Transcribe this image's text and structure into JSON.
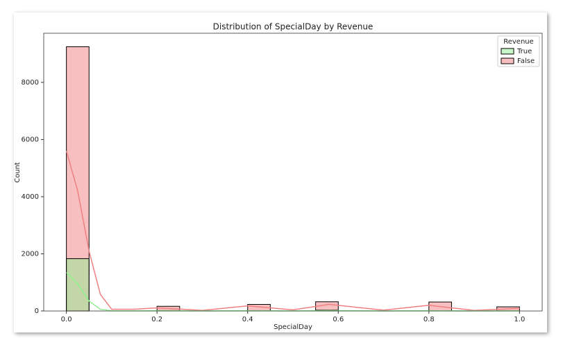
{
  "chart_data": {
    "type": "histogram",
    "title": "Distribution of SpecialDay by Revenue",
    "x_label": "SpecialDay",
    "y_label": "Count",
    "legend_title": "Revenue",
    "legend": "upper right",
    "bins": [
      0,
      0.05,
      0.1,
      0.15,
      0.2,
      0.25,
      0.3,
      0.35,
      0.4,
      0.45,
      0.5,
      0.55,
      0.6,
      0.65,
      0.7,
      0.75,
      0.8,
      0.85,
      0.9,
      0.95,
      1.0
    ],
    "series": [
      {
        "name": "True",
        "color": "#90ee90",
        "values": [
          1831,
          0,
          0,
          0,
          14,
          0,
          0,
          0,
          13,
          0,
          0,
          29,
          0,
          0,
          0,
          0,
          11,
          0,
          0,
          9
        ],
        "kde": {
          "x": [
            0,
            0.025,
            0.05,
            0.075,
            0.1,
            0.15,
            0.2,
            0.3,
            0.4,
            0.5,
            0.58,
            0.7,
            0.8,
            0.9,
            1.0
          ],
          "y": [
            1350,
            950,
            350,
            60,
            5,
            5,
            10,
            3,
            8,
            3,
            12,
            3,
            8,
            2,
            5
          ]
        }
      },
      {
        "name": "False",
        "color": "#f08080",
        "values": [
          9248,
          0,
          0,
          0,
          164,
          0,
          0,
          0,
          230,
          0,
          0,
          322,
          0,
          0,
          0,
          0,
          314,
          0,
          0,
          145
        ],
        "kde": {
          "x": [
            0,
            0.025,
            0.05,
            0.075,
            0.1,
            0.15,
            0.2,
            0.3,
            0.4,
            0.5,
            0.58,
            0.7,
            0.8,
            0.9,
            1.0
          ],
          "y": [
            5600,
            4200,
            2100,
            580,
            60,
            60,
            110,
            20,
            180,
            40,
            230,
            30,
            200,
            20,
            90
          ]
        }
      }
    ],
    "xlim": [
      -0.05,
      1.05
    ],
    "ylim": [
      0,
      9720
    ],
    "xticks": [
      {
        "value": 0,
        "label": "0.0"
      },
      0.2,
      0.4,
      0.6,
      0.8,
      {
        "value": 1.0,
        "label": "1.0"
      }
    ],
    "yticks": [
      0,
      2000,
      4000,
      6000,
      8000
    ]
  }
}
